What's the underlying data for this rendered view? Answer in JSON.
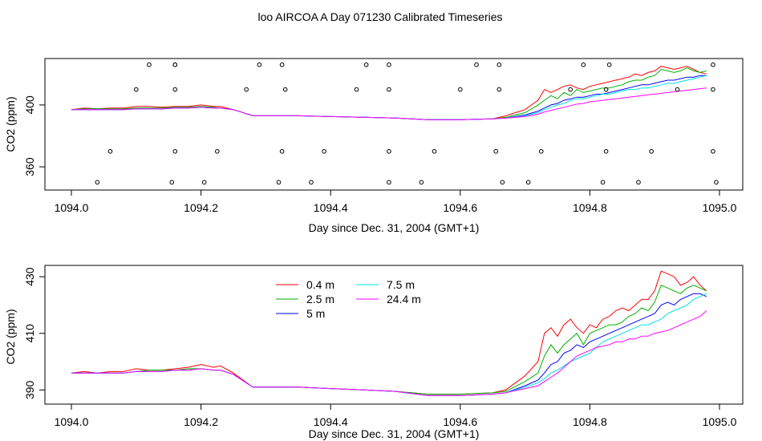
{
  "title": "loo AIRCOA A  Day 071230  Calibrated Timeseries",
  "colors": {
    "0.4 m": "#ff0000",
    "2.5 m": "#00b000",
    "5 m": "#0000ff",
    "7.5 m": "#00e0e0",
    "24.4 m": "#ff00ff"
  },
  "chart_data": [
    {
      "type": "line",
      "xlabel": "Day since Dec. 31, 2004 (GMT+1)",
      "ylabel": "CO2 (ppm)",
      "xlim": [
        1094.0,
        1095.0
      ],
      "ylim": [
        345,
        430
      ],
      "xticks": [
        "1094.0",
        "1094.2",
        "1094.4",
        "1094.6",
        "1094.8",
        "1095.0"
      ],
      "yticks": [
        "360",
        "400"
      ],
      "x": [
        1094.0,
        1094.02,
        1094.04,
        1094.06,
        1094.08,
        1094.1,
        1094.12,
        1094.14,
        1094.16,
        1094.18,
        1094.2,
        1094.22,
        1094.23,
        1094.25,
        1094.28,
        1094.3,
        1094.35,
        1094.4,
        1094.45,
        1094.5,
        1094.55,
        1094.6,
        1094.65,
        1094.67,
        1094.7,
        1094.72,
        1094.73,
        1094.74,
        1094.75,
        1094.76,
        1094.77,
        1094.78,
        1094.79,
        1094.8,
        1094.81,
        1094.82,
        1094.83,
        1094.84,
        1094.85,
        1094.86,
        1094.87,
        1094.88,
        1094.89,
        1094.9,
        1094.91,
        1094.92,
        1094.93,
        1094.94,
        1094.95,
        1094.96,
        1094.97,
        1094.98
      ],
      "series": [
        {
          "name": "0.4 m",
          "values": [
            397,
            398,
            397.5,
            398,
            398,
            399,
            399,
            398.5,
            399,
            399,
            400,
            399,
            399,
            397,
            393,
            393,
            393,
            392.5,
            392,
            391.5,
            390.5,
            390.5,
            391,
            393,
            397,
            403,
            410,
            408,
            410,
            412,
            413,
            411,
            410,
            412,
            413,
            414,
            415,
            416,
            417,
            418,
            420,
            419,
            421,
            422,
            425,
            424,
            423,
            424,
            425,
            423,
            421,
            420
          ]
        },
        {
          "name": "2.5 m",
          "values": [
            397,
            397.5,
            397.5,
            397.5,
            397.5,
            398,
            398,
            398,
            398.5,
            398.5,
            399,
            398.5,
            398,
            397,
            393,
            393,
            393,
            392.5,
            392,
            391.5,
            390.5,
            390.5,
            391,
            392,
            395,
            400,
            403,
            406,
            404,
            408,
            406,
            410,
            408,
            409,
            410,
            411,
            411,
            412,
            413,
            415,
            416,
            416,
            418,
            419,
            423,
            422,
            421,
            422,
            424,
            422,
            421,
            422
          ]
        },
        {
          "name": "5 m",
          "values": [
            397,
            397,
            397,
            397,
            397,
            397.5,
            397.5,
            397.5,
            398,
            398,
            398.5,
            398,
            398,
            397,
            393,
            393,
            393,
            392.5,
            392,
            391.5,
            390.5,
            390.5,
            391,
            391.5,
            393.5,
            396,
            398,
            400,
            401,
            403,
            404,
            405,
            405,
            406,
            407,
            407,
            408,
            409,
            410,
            411,
            412,
            413,
            413,
            414,
            415,
            416,
            416,
            417,
            418,
            418,
            419,
            419
          ]
        },
        {
          "name": "7.5 m",
          "values": [
            397,
            397,
            397,
            397,
            397,
            397.5,
            397.5,
            397.5,
            398,
            398,
            398.5,
            398,
            398,
            397,
            393,
            393,
            393,
            392.5,
            392,
            391.5,
            390.5,
            390.5,
            391,
            391.5,
            393,
            395,
            397,
            398.5,
            400,
            401,
            403,
            404,
            404,
            405,
            406,
            407,
            407,
            408,
            409,
            410,
            410,
            411,
            411,
            412,
            413,
            414,
            414,
            415,
            416,
            417,
            418,
            419
          ]
        },
        {
          "name": "24.4 m",
          "values": [
            397,
            397,
            397,
            397,
            397,
            397.5,
            397.5,
            397.5,
            398,
            398,
            398.5,
            398,
            398,
            397,
            393,
            393,
            393,
            392.5,
            392,
            391.5,
            390.5,
            390.5,
            391,
            391.5,
            392.5,
            394,
            395.5,
            396.5,
            397.5,
            398.5,
            399.5,
            400.5,
            401,
            402,
            402.5,
            403,
            403.5,
            404,
            404.5,
            405,
            405.5,
            406,
            406.5,
            407,
            407.5,
            408,
            408.5,
            409,
            409.5,
            410,
            410.5,
            411
          ]
        }
      ],
      "markers": {
        "x": [
          1094.04,
          1094.06,
          1094.1,
          1094.12,
          1094.155,
          1094.16,
          1094.16,
          1094.16,
          1094.16,
          1094.205,
          1094.225,
          1094.27,
          1094.29,
          1094.32,
          1094.325,
          1094.325,
          1094.33,
          1094.37,
          1094.39,
          1094.44,
          1094.455,
          1094.49,
          1094.49,
          1094.49,
          1094.49,
          1094.54,
          1094.56,
          1094.6,
          1094.625,
          1094.655,
          1094.66,
          1094.66,
          1094.665,
          1094.705,
          1094.725,
          1094.77,
          1094.79,
          1094.82,
          1094.825,
          1094.825,
          1094.83,
          1094.875,
          1094.895,
          1094.935,
          1094.99,
          1094.99,
          1094.99,
          1094.995
        ],
        "y": [
          350,
          370,
          410,
          426,
          350,
          370,
          410,
          426,
          426,
          350,
          370,
          410,
          426,
          350,
          370,
          426,
          410,
          350,
          370,
          410,
          426,
          350,
          370,
          410,
          426,
          350,
          370,
          410,
          426,
          370,
          410,
          426,
          350,
          350,
          370,
          410,
          426,
          350,
          370,
          410,
          426,
          350,
          370,
          410,
          426,
          410,
          370,
          350
        ]
      }
    },
    {
      "type": "line",
      "xlabel": "Day since Dec. 31, 2004 (GMT+1)",
      "ylabel": "CO2 (ppm)",
      "xlim": [
        1094.0,
        1095.0
      ],
      "ylim": [
        385,
        434
      ],
      "xticks": [
        "1094.0",
        "1094.2",
        "1094.4",
        "1094.6",
        "1094.8",
        "1095.0"
      ],
      "yticks": [
        "390",
        "410",
        "430"
      ],
      "legend": [
        "0.4 m",
        "2.5 m",
        "5 m",
        "7.5 m",
        "24.4 m"
      ],
      "x": [
        1094.0,
        1094.02,
        1094.04,
        1094.06,
        1094.08,
        1094.1,
        1094.12,
        1094.14,
        1094.16,
        1094.18,
        1094.2,
        1094.22,
        1094.23,
        1094.25,
        1094.28,
        1094.3,
        1094.35,
        1094.4,
        1094.45,
        1094.5,
        1094.55,
        1094.6,
        1094.65,
        1094.67,
        1094.7,
        1094.72,
        1094.73,
        1094.74,
        1094.75,
        1094.76,
        1094.77,
        1094.78,
        1094.79,
        1094.8,
        1094.81,
        1094.82,
        1094.83,
        1094.84,
        1094.85,
        1094.86,
        1094.87,
        1094.88,
        1094.89,
        1094.9,
        1094.91,
        1094.92,
        1094.93,
        1094.94,
        1094.95,
        1094.96,
        1094.97,
        1094.98
      ],
      "series": [
        {
          "name": "0.4 m",
          "values": [
            396,
            396.5,
            396,
            396.5,
            396.5,
            397.5,
            397,
            397,
            397.5,
            398,
            399,
            398,
            398.5,
            396,
            391,
            391,
            391,
            390.5,
            390,
            389.5,
            388.5,
            388.5,
            389,
            390,
            395,
            400,
            410,
            412,
            409,
            413,
            415,
            412,
            410,
            413,
            412,
            415,
            416,
            418,
            419,
            418,
            420,
            422,
            422,
            425,
            432,
            431,
            430,
            427,
            428,
            430,
            427,
            425
          ]
        },
        {
          "name": "2.5 m",
          "values": [
            396,
            396,
            396,
            396,
            396,
            396.5,
            397,
            397,
            397,
            397.5,
            397.5,
            397,
            397,
            395.5,
            391,
            391,
            391,
            390.5,
            390,
            389.5,
            388.5,
            388.5,
            389,
            389.5,
            393,
            396,
            402,
            406,
            403,
            406,
            408,
            410,
            406,
            410,
            411,
            412,
            413,
            413,
            414,
            416,
            417,
            419,
            418,
            421,
            427,
            426,
            425,
            424,
            426,
            427,
            426,
            425
          ]
        },
        {
          "name": "5 m",
          "values": [
            396,
            396,
            396,
            396,
            396,
            396.5,
            396.5,
            396.5,
            397,
            397,
            397.5,
            397,
            397,
            395.5,
            391,
            391,
            391,
            390.5,
            390,
            389.5,
            388,
            388,
            388.5,
            389,
            391.5,
            393.5,
            396,
            399,
            400,
            403,
            404,
            406,
            405,
            407,
            408,
            409,
            410,
            411,
            412,
            413,
            414,
            415,
            416,
            417,
            420,
            421,
            420,
            422,
            423,
            424,
            424,
            423
          ]
        },
        {
          "name": "7.5 m",
          "values": [
            396,
            396,
            396,
            396,
            396,
            396.5,
            396.5,
            396.5,
            397,
            397,
            397.5,
            397,
            397,
            395.5,
            391,
            391,
            391,
            390.5,
            390,
            389.5,
            388,
            388,
            388.5,
            389,
            391,
            392.5,
            394,
            396,
            397,
            398.5,
            400,
            401,
            402,
            403,
            405,
            407,
            408,
            409,
            410,
            411,
            412,
            413,
            413,
            414,
            415,
            417,
            418,
            419,
            420,
            422,
            423,
            424
          ]
        },
        {
          "name": "24.4 m",
          "values": [
            396,
            396,
            396,
            396,
            396,
            396.5,
            396.5,
            396.5,
            397,
            397,
            397.5,
            397,
            397,
            395.5,
            391,
            391,
            391,
            390.5,
            390,
            389.5,
            388,
            388,
            388.5,
            389,
            390.5,
            391.5,
            393,
            394.5,
            396,
            398,
            400,
            402,
            403,
            404,
            405,
            405.5,
            406,
            407,
            407,
            408,
            408,
            409,
            409,
            410,
            410.5,
            411,
            412,
            413,
            414,
            415,
            416,
            418
          ]
        }
      ]
    }
  ]
}
